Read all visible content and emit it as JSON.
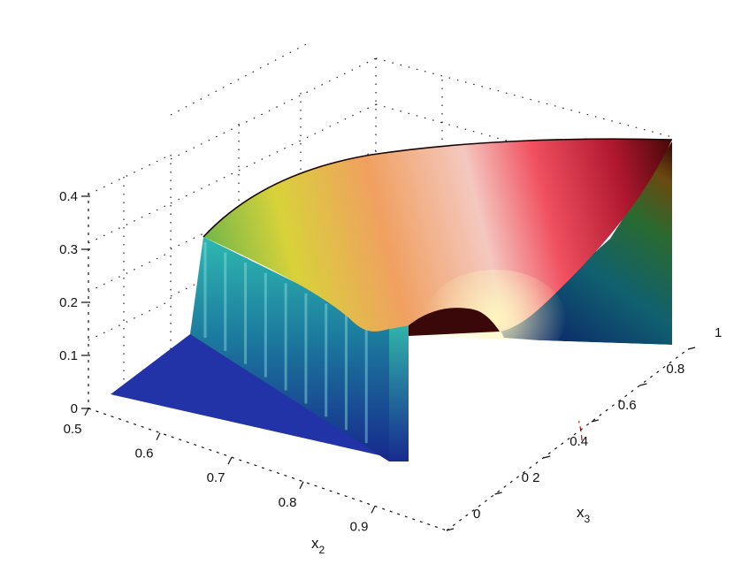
{
  "chart_data": {
    "type": "surface",
    "title": "",
    "grid": true,
    "colormap": [
      "#1f2f9a",
      "#1aa0b4",
      "#e8e23a",
      "#f07060",
      "#fff0f0",
      "#5a0a0a"
    ],
    "x_axis": {
      "label": "x",
      "subscript": "2",
      "range": [
        0.5,
        1.0
      ],
      "ticks": [
        "0.5",
        "0.6",
        "0.7",
        "0.8",
        "0.9"
      ]
    },
    "y_axis": {
      "label": "x",
      "subscript": "3",
      "range": [
        0,
        1
      ],
      "ticks": [
        "0",
        "0 2",
        "0.4",
        "0.6",
        "0.8",
        "1"
      ]
    },
    "z_axis": {
      "label": "",
      "range": [
        0,
        0.45
      ],
      "ticks": [
        "0",
        "0.1",
        "0.2",
        "0.3",
        "0.4"
      ]
    },
    "surface_levels": {
      "floor": 0.0,
      "plateau_front": 0.3,
      "plateau_back": 0.45,
      "dip_near_x3_zero": 0.12
    },
    "floor_contours": [
      "#c21a1a",
      "#d8361c",
      "#e85a1c",
      "#f39a20",
      "#f5d21a"
    ]
  }
}
